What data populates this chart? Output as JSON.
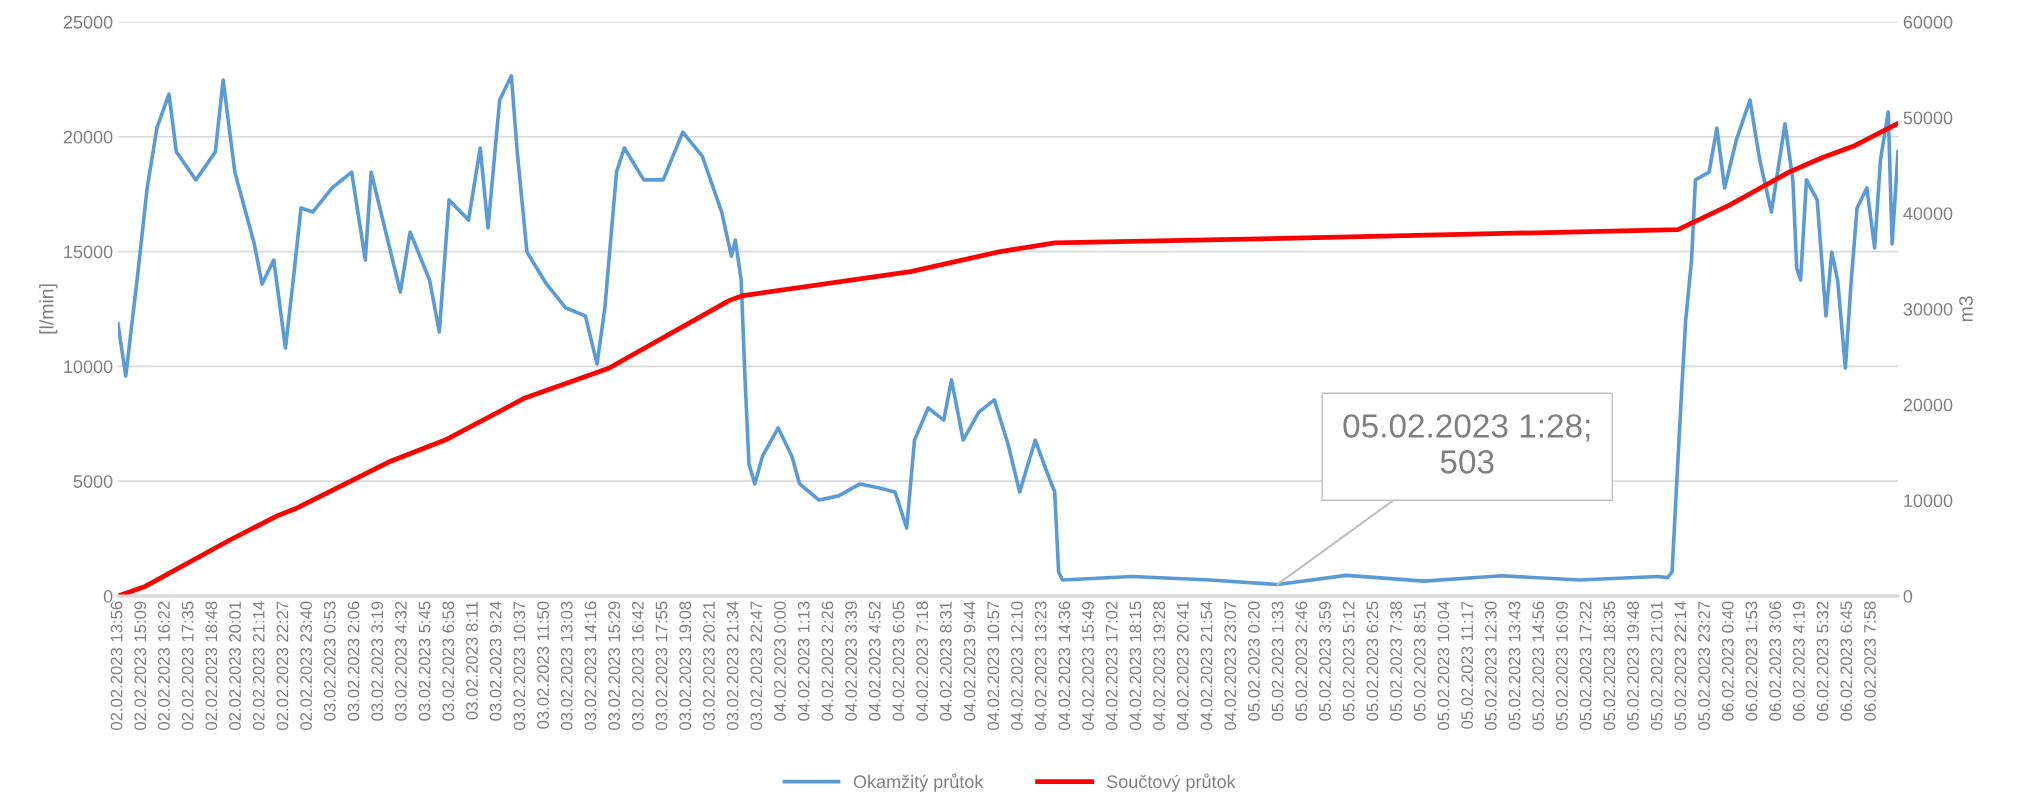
{
  "chart_data": {
    "type": "line",
    "ylabel": "[l/min]",
    "y2label": "m3",
    "xlim": [
      "2023-02-02T13:56",
      "2023-02-06T09:20"
    ],
    "ylim": [
      0,
      25000
    ],
    "yticks": [
      0,
      5000,
      10000,
      15000,
      20000,
      25000
    ],
    "y2lim": [
      0,
      60000
    ],
    "y2ticks": [
      0,
      10000,
      20000,
      30000,
      40000,
      50000,
      60000
    ],
    "grid": "y",
    "legend": "bottom",
    "marker": "none",
    "line_style": "solid",
    "xticks": [
      {
        "value": "2023-02-02T13:56",
        "label": "02.02.2023 13:56"
      },
      {
        "value": "2023-02-02T15:09",
        "label": "02.02.2023 15:09"
      },
      {
        "value": "2023-02-02T16:22",
        "label": "02.02.2023 16:22"
      },
      {
        "value": "2023-02-02T17:35",
        "label": "02.02.2023 17:35"
      },
      {
        "value": "2023-02-02T18:48",
        "label": "02.02.2023 18:48"
      },
      {
        "value": "2023-02-02T20:01",
        "label": "02.02.2023 20:01"
      },
      {
        "value": "2023-02-02T21:14",
        "label": "02.02.2023 21:14"
      },
      {
        "value": "2023-02-02T22:27",
        "label": "02.02.2023 22:27"
      },
      {
        "value": "2023-02-02T23:40",
        "label": "02.02.2023 23:40"
      },
      {
        "value": "2023-02-03T00:53",
        "label": "03.02.2023 0:53"
      },
      {
        "value": "2023-02-03T02:06",
        "label": "03.02.2023 2:06"
      },
      {
        "value": "2023-02-03T03:19",
        "label": "03.02.2023 3:19"
      },
      {
        "value": "2023-02-03T04:32",
        "label": "03.02.2023 4:32"
      },
      {
        "value": "2023-02-03T05:45",
        "label": "03.02.2023 5:45"
      },
      {
        "value": "2023-02-03T06:58",
        "label": "03.02.2023 6:58"
      },
      {
        "value": "2023-02-03T08:11",
        "label": "03.02.2023 8:11"
      },
      {
        "value": "2023-02-03T09:24",
        "label": "03.02.2023 9:24"
      },
      {
        "value": "2023-02-03T10:37",
        "label": "03.02.2023 10:37"
      },
      {
        "value": "2023-02-03T11:50",
        "label": "03.02.2023 11:50"
      },
      {
        "value": "2023-02-03T13:03",
        "label": "03.02.2023 13:03"
      },
      {
        "value": "2023-02-03T14:16",
        "label": "03.02.2023 14:16"
      },
      {
        "value": "2023-02-03T15:29",
        "label": "03.02.2023 15:29"
      },
      {
        "value": "2023-02-03T16:42",
        "label": "03.02.2023 16:42"
      },
      {
        "value": "2023-02-03T17:55",
        "label": "03.02.2023 17:55"
      },
      {
        "value": "2023-02-03T19:08",
        "label": "03.02.2023 19:08"
      },
      {
        "value": "2023-02-03T20:21",
        "label": "03.02.2023 20:21"
      },
      {
        "value": "2023-02-03T21:34",
        "label": "03.02.2023 21:34"
      },
      {
        "value": "2023-02-03T22:47",
        "label": "03.02.2023 22:47"
      },
      {
        "value": "2023-02-04T00:00",
        "label": "04.02.2023 0:00"
      },
      {
        "value": "2023-02-04T01:13",
        "label": "04.02.2023 1:13"
      },
      {
        "value": "2023-02-04T02:26",
        "label": "04.02.2023 2:26"
      },
      {
        "value": "2023-02-04T03:39",
        "label": "04.02.2023 3:39"
      },
      {
        "value": "2023-02-04T04:52",
        "label": "04.02.2023 4:52"
      },
      {
        "value": "2023-02-04T06:05",
        "label": "04.02.2023 6:05"
      },
      {
        "value": "2023-02-04T07:18",
        "label": "04.02.2023 7:18"
      },
      {
        "value": "2023-02-04T08:31",
        "label": "04.02.2023 8:31"
      },
      {
        "value": "2023-02-04T09:44",
        "label": "04.02.2023 9:44"
      },
      {
        "value": "2023-02-04T10:57",
        "label": "04.02.2023 10:57"
      },
      {
        "value": "2023-02-04T12:10",
        "label": "04.02.2023 12:10"
      },
      {
        "value": "2023-02-04T13:23",
        "label": "04.02.2023 13:23"
      },
      {
        "value": "2023-02-04T14:36",
        "label": "04.02.2023 14:36"
      },
      {
        "value": "2023-02-04T15:49",
        "label": "04.02.2023 15:49"
      },
      {
        "value": "2023-02-04T17:02",
        "label": "04.02.2023 17:02"
      },
      {
        "value": "2023-02-04T18:15",
        "label": "04.02.2023 18:15"
      },
      {
        "value": "2023-02-04T19:28",
        "label": "04.02.2023 19:28"
      },
      {
        "value": "2023-02-04T20:41",
        "label": "04.02.2023 20:41"
      },
      {
        "value": "2023-02-04T21:54",
        "label": "04.02.2023 21:54"
      },
      {
        "value": "2023-02-04T23:07",
        "label": "04.02.2023 23:07"
      },
      {
        "value": "2023-02-05T00:20",
        "label": "05.02.2023 0:20"
      },
      {
        "value": "2023-02-05T01:33",
        "label": "05.02.2023 1:33"
      },
      {
        "value": "2023-02-05T02:46",
        "label": "05.02.2023 2:46"
      },
      {
        "value": "2023-02-05T03:59",
        "label": "05.02.2023 3:59"
      },
      {
        "value": "2023-02-05T05:12",
        "label": "05.02.2023 5:12"
      },
      {
        "value": "2023-02-05T06:25",
        "label": "05.02.2023 6:25"
      },
      {
        "value": "2023-02-05T07:38",
        "label": "05.02.2023 7:38"
      },
      {
        "value": "2023-02-05T08:51",
        "label": "05.02.2023 8:51"
      },
      {
        "value": "2023-02-05T10:04",
        "label": "05.02.2023 10:04"
      },
      {
        "value": "2023-02-05T11:17",
        "label": "05.02.2023 11:17"
      },
      {
        "value": "2023-02-05T12:30",
        "label": "05.02.2023 12:30"
      },
      {
        "value": "2023-02-05T13:43",
        "label": "05.02.2023 13:43"
      },
      {
        "value": "2023-02-05T14:56",
        "label": "05.02.2023 14:56"
      },
      {
        "value": "2023-02-05T16:09",
        "label": "05.02.2023 16:09"
      },
      {
        "value": "2023-02-05T17:22",
        "label": "05.02.2023 17:22"
      },
      {
        "value": "2023-02-05T18:35",
        "label": "05.02.2023 18:35"
      },
      {
        "value": "2023-02-05T19:48",
        "label": "05.02.2023 19:48"
      },
      {
        "value": "2023-02-05T21:01",
        "label": "05.02.2023 21:01"
      },
      {
        "value": "2023-02-05T22:14",
        "label": "05.02.2023 22:14"
      },
      {
        "value": "2023-02-05T23:27",
        "label": "05.02.2023 23:27"
      },
      {
        "value": "2023-02-06T00:40",
        "label": "06.02.2023 0:40"
      },
      {
        "value": "2023-02-06T01:53",
        "label": "06.02.2023 1:53"
      },
      {
        "value": "2023-02-06T03:06",
        "label": "06.02.2023 3:06"
      },
      {
        "value": "2023-02-06T04:19",
        "label": "06.02.2023 4:19"
      },
      {
        "value": "2023-02-06T05:32",
        "label": "06.02.2023 5:32"
      },
      {
        "value": "2023-02-06T06:45",
        "label": "06.02.2023 6:45"
      },
      {
        "value": "2023-02-06T07:58",
        "label": "06.02.2023 7:58"
      }
    ],
    "annotations": [
      {
        "text": "05.02.2023 1:28;\n503",
        "x": "2023-02-05T01:28",
        "y": 503
      }
    ],
    "series": [
      {
        "name": "Okamžitý průtok",
        "color": "#5b9bd5",
        "x": [
          "2023-02-02T13:56",
          "2023-02-02T14:20",
          "2023-02-02T14:56",
          "2023-02-02T15:26",
          "2023-02-02T15:56",
          "2023-02-02T16:33",
          "2023-02-02T16:56",
          "2023-02-02T17:56",
          "2023-02-02T18:56",
          "2023-02-02T19:20",
          "2023-02-02T19:56",
          "2023-02-02T20:56",
          "2023-02-02T21:20",
          "2023-02-02T21:56",
          "2023-02-02T22:32",
          "2023-02-02T22:56",
          "2023-02-02T23:20",
          "2023-02-02T23:56",
          "2023-02-03T00:56",
          "2023-02-03T01:56",
          "2023-02-03T02:38",
          "2023-02-03T02:56",
          "2023-02-03T03:56",
          "2023-02-03T04:26",
          "2023-02-03T04:56",
          "2023-02-03T05:56",
          "2023-02-03T06:26",
          "2023-02-03T06:56",
          "2023-02-03T07:56",
          "2023-02-03T08:32",
          "2023-02-03T08:56",
          "2023-02-03T09:32",
          "2023-02-03T10:08",
          "2023-02-03T10:26",
          "2023-02-03T10:56",
          "2023-02-03T11:56",
          "2023-02-03T12:56",
          "2023-02-03T13:56",
          "2023-02-03T14:32",
          "2023-02-03T14:56",
          "2023-02-03T15:32",
          "2023-02-03T15:56",
          "2023-02-03T16:56",
          "2023-02-03T17:56",
          "2023-02-03T18:56",
          "2023-02-03T19:56",
          "2023-02-03T20:56",
          "2023-02-03T21:26",
          "2023-02-03T21:38",
          "2023-02-03T21:56",
          "2023-02-03T22:08",
          "2023-02-03T22:20",
          "2023-02-03T22:38",
          "2023-02-03T23:02",
          "2023-02-03T23:50",
          "2023-02-04T00:32",
          "2023-02-04T00:56",
          "2023-02-04T01:56",
          "2023-02-04T02:56",
          "2023-02-04T04:02",
          "2023-02-04T05:02",
          "2023-02-04T05:50",
          "2023-02-04T06:26",
          "2023-02-04T06:50",
          "2023-02-04T07:32",
          "2023-02-04T08:20",
          "2023-02-04T08:44",
          "2023-02-04T09:20",
          "2023-02-04T10:08",
          "2023-02-04T10:56",
          "2023-02-04T11:38",
          "2023-02-04T12:14",
          "2023-02-04T13:02",
          "2023-02-04T13:38",
          "2023-02-04T14:02",
          "2023-02-04T14:14",
          "2023-02-04T14:26",
          "2023-02-04T18:00",
          "2023-02-04T22:00",
          "2023-02-05T01:28",
          "2023-02-05T05:00",
          "2023-02-05T09:00",
          "2023-02-05T13:00",
          "2023-02-05T17:00",
          "2023-02-05T21:00",
          "2023-02-05T21:30",
          "2023-02-05T21:44",
          "2023-02-05T22:02",
          "2023-02-05T22:14",
          "2023-02-05T22:26",
          "2023-02-05T22:44",
          "2023-02-05T22:56",
          "2023-02-05T23:38",
          "2023-02-06T00:02",
          "2023-02-06T00:26",
          "2023-02-06T01:02",
          "2023-02-06T01:44",
          "2023-02-06T02:14",
          "2023-02-06T02:50",
          "2023-02-06T03:32",
          "2023-02-06T03:56",
          "2023-02-06T04:08",
          "2023-02-06T04:20",
          "2023-02-06T04:38",
          "2023-02-06T05:11",
          "2023-02-06T05:38",
          "2023-02-06T05:56",
          "2023-02-06T06:14",
          "2023-02-06T06:38",
          "2023-02-06T06:56",
          "2023-02-06T07:14",
          "2023-02-06T07:44",
          "2023-02-06T08:08",
          "2023-02-06T08:26",
          "2023-02-06T08:50",
          "2023-02-06T09:02",
          "2023-02-06T09:20"
        ],
        "values": [
          11850,
          9580,
          13900,
          17770,
          20380,
          21860,
          19340,
          18120,
          19340,
          22470,
          18460,
          15330,
          13590,
          14630,
          10800,
          13760,
          16900,
          16720,
          17770,
          18460,
          14630,
          18460,
          14980,
          13240,
          15850,
          13760,
          11500,
          17250,
          16370,
          19510,
          16030,
          21600,
          22650,
          19340,
          14980,
          13590,
          12540,
          12200,
          10100,
          12540,
          18460,
          19510,
          18120,
          18120,
          20200,
          19160,
          16720,
          14800,
          15500,
          13760,
          9410,
          5750,
          4880,
          6100,
          7320,
          6100,
          4880,
          4180,
          4360,
          4880,
          4700,
          4530,
          2960,
          6790,
          8190,
          7660,
          9410,
          6790,
          8010,
          8540,
          6620,
          4530,
          6790,
          5400,
          4530,
          1050,
          700,
          850,
          700,
          503,
          900,
          650,
          880,
          700,
          850,
          800,
          1050,
          5920,
          9060,
          12020,
          14630,
          18120,
          18460,
          20380,
          17770,
          19860,
          21600,
          18990,
          16720,
          20560,
          18120,
          14280,
          13760,
          18120,
          17250,
          12200,
          14980,
          13760,
          9930,
          13760,
          16900,
          17770,
          15160,
          18990,
          21080,
          15330,
          19340
        ]
      },
      {
        "name": "Součtový průtok",
        "color": "#ff0000",
        "axis": "y2",
        "x": [
          "2023-02-02T13:56",
          "2023-02-02T15:20",
          "2023-02-02T19:38",
          "2023-02-02T22:08",
          "2023-02-02T23:08",
          "2023-02-03T03:50",
          "2023-02-03T06:44",
          "2023-02-03T10:50",
          "2023-02-03T15:08",
          "2023-02-03T21:20",
          "2023-02-03T22:02",
          "2023-02-04T06:38",
          "2023-02-04T11:14",
          "2023-02-04T14:02",
          "2023-02-05T04:38",
          "2023-02-05T22:02",
          "2023-02-06T00:38",
          "2023-02-06T03:44",
          "2023-02-06T05:26",
          "2023-02-06T07:02",
          "2023-02-06T09:20"
        ],
        "values": [
          0,
          1000,
          5800,
          8400,
          9200,
          14000,
          16300,
          20700,
          23800,
          30900,
          31400,
          33900,
          36000,
          36900,
          37500,
          38300,
          40800,
          44300,
          45800,
          47000,
          49400
        ]
      }
    ]
  }
}
